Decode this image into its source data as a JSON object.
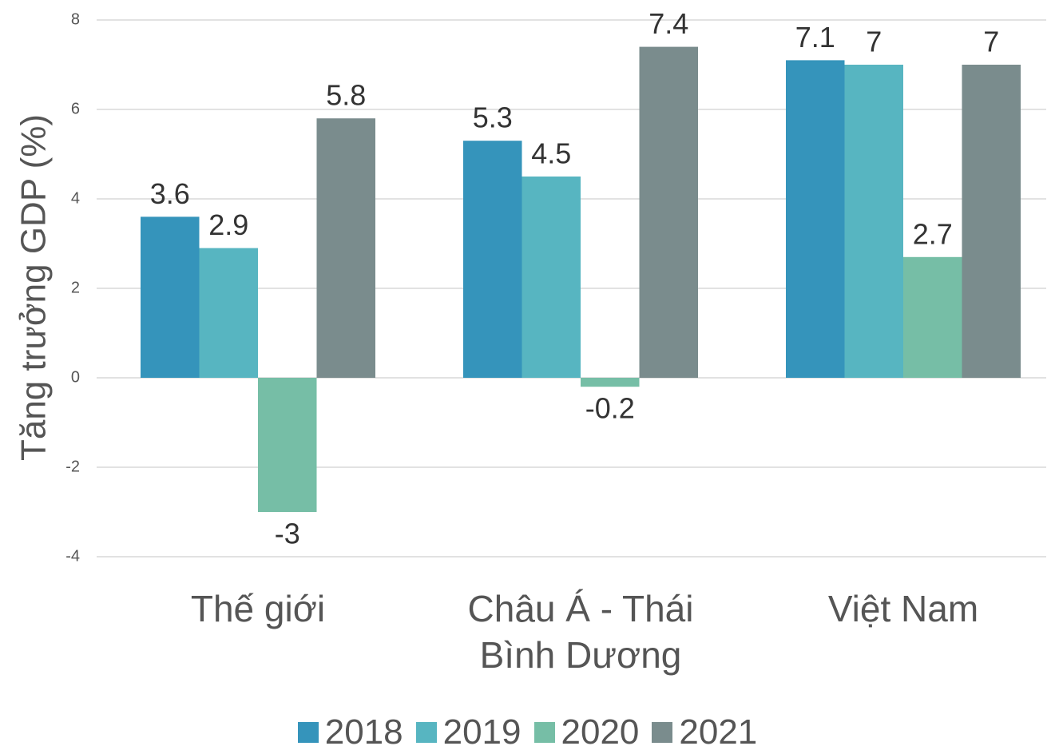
{
  "chart_data": {
    "type": "bar",
    "y_label": "Tăng trưởng GDP (%)",
    "categories": [
      "Thế giới",
      "Châu Á - Thái Bình Dương",
      "Việt Nam"
    ],
    "series": [
      {
        "name": "2018",
        "color": "#3594bb",
        "values": [
          3.6,
          5.3,
          7.1
        ]
      },
      {
        "name": "2019",
        "color": "#57b5c1",
        "values": [
          2.9,
          4.5,
          7
        ]
      },
      {
        "name": "2020",
        "color": "#76bea6",
        "values": [
          -3,
          -0.2,
          2.7
        ]
      },
      {
        "name": "2021",
        "color": "#7a8c8d",
        "values": [
          5.8,
          7.4,
          7
        ]
      }
    ],
    "ylim": [
      -4,
      8
    ],
    "yticks": [
      -4,
      -2,
      0,
      2,
      4,
      6,
      8
    ],
    "grid": true,
    "legend": "bottom"
  }
}
